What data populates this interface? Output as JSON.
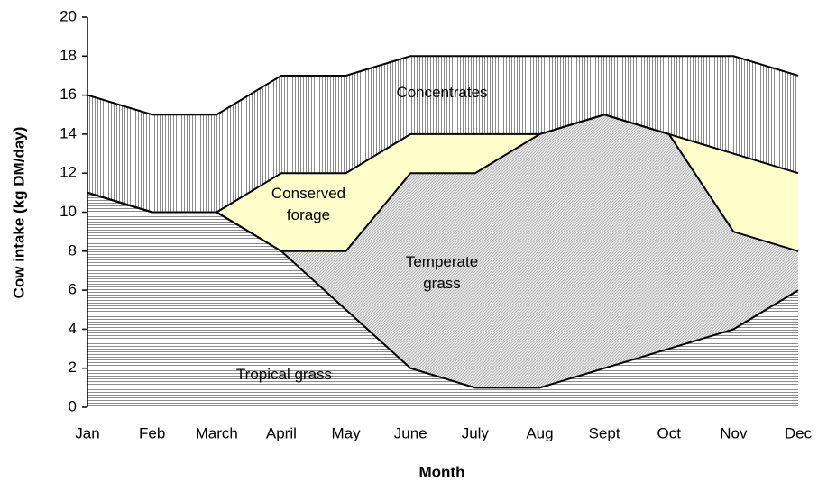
{
  "chart_data": {
    "type": "stacked_area",
    "xlabel": "Month",
    "ylabel": "Cow intake (kg DM/day)",
    "categories": [
      "Jan",
      "Feb",
      "March",
      "April",
      "May",
      "June",
      "July",
      "Aug",
      "Sept",
      "Oct",
      "Nov",
      "Dec"
    ],
    "series": [
      {
        "name": "Tropical grass",
        "color": "#8c8c8c",
        "pattern": "horizontal",
        "values": [
          11,
          10,
          10,
          8,
          5,
          2,
          1,
          1,
          2,
          3,
          4,
          6
        ]
      },
      {
        "name": "Temperate grass",
        "color": "#b0b0b0",
        "pattern": "diagonal",
        "values": [
          0,
          0,
          0,
          0,
          3,
          10,
          11,
          13,
          13,
          11,
          5,
          2
        ]
      },
      {
        "name": "Conserved forage",
        "color": "#ffffcc",
        "pattern": "none",
        "values": [
          0,
          0,
          0,
          4,
          4,
          2,
          2,
          0,
          0,
          0,
          4,
          4
        ]
      },
      {
        "name": "Concentrates",
        "color": "#8c8c8c",
        "pattern": "vertical",
        "values": [
          5,
          5,
          5,
          5,
          5,
          4,
          4,
          4,
          3,
          4,
          5,
          5
        ]
      }
    ],
    "ylim": [
      0,
      20
    ],
    "yticks": [
      0,
      2,
      4,
      6,
      8,
      10,
      12,
      14,
      16,
      18,
      20
    ],
    "grid": false
  }
}
